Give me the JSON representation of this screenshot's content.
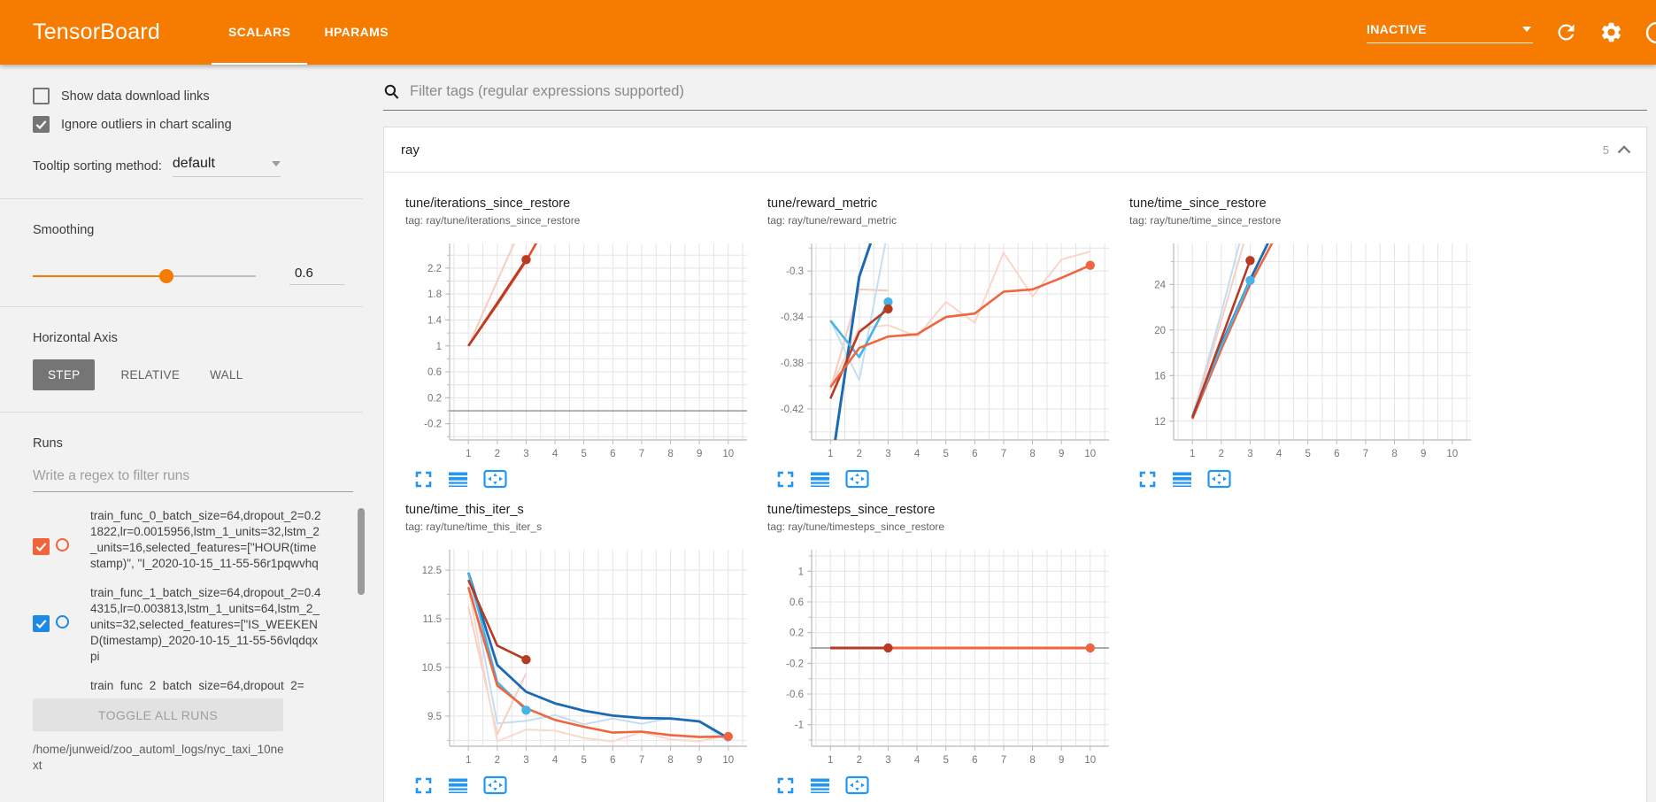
{
  "header": {
    "title": "TensorBoard",
    "tabs": [
      {
        "label": "SCALARS",
        "active": true
      },
      {
        "label": "HPARAMS",
        "active": false
      }
    ],
    "status": "INACTIVE",
    "accent_color": "#f57c00",
    "icons": [
      "dropdown-caret-icon",
      "refresh-icon",
      "gear-icon",
      "help-icon"
    ]
  },
  "sidebar": {
    "checkboxes": [
      {
        "label": "Show data download links",
        "checked": false
      },
      {
        "label": "Ignore outliers in chart scaling",
        "checked": true
      }
    ],
    "tooltip": {
      "label": "Tooltip sorting method:",
      "value": "default"
    },
    "smoothing": {
      "label": "Smoothing",
      "value": "0.6",
      "percent": 60
    },
    "axis": {
      "label": "Horizontal Axis",
      "options": [
        "STEP",
        "RELATIVE",
        "WALL"
      ],
      "selected": "STEP"
    },
    "runs": {
      "label": "Runs",
      "placeholder": "Write a regex to filter runs",
      "items": [
        {
          "text": "train_func_0_batch_size=64,dropout_2=0.21822,lr=0.0015956,lstm_1_units=32,lstm_2_units=16,selected_features=[\"HOUR(timestamp)\", \"I_2020-10-15_11-55-56r1pqwvhq",
          "checked": true,
          "color": "#f4623a"
        },
        {
          "text": "train_func_1_batch_size=64,dropout_2=0.44315,lr=0.003813,lstm_1_units=64,lstm_2_units=32,selected_features=[\"IS_WEEKEND(timestamp)_2020-10-15_11-55-56vlqdqxpi",
          "checked": true,
          "color": "#1e88e5"
        },
        {
          "text": "train_func_2_batch_size=64,dropout_2=",
          "checked": true,
          "color": "#e45140"
        }
      ],
      "toggle_all": "TOGGLE ALL RUNS",
      "log_path": "/home/junweid/zoo_automl_logs/nyc_taxi_10next"
    }
  },
  "main": {
    "filter_placeholder": "Filter tags (regular expressions supported)",
    "section": {
      "name": "ray",
      "count": "5"
    }
  },
  "chart_data": [
    {
      "type": "line",
      "title": "tune/iterations_since_restore",
      "tag": "tag: ray/tune/iterations_since_restore",
      "xlim": [
        0.35,
        10.65
      ],
      "ylim": [
        -0.45,
        2.58
      ],
      "xticks": [
        1,
        2,
        3,
        4,
        5,
        6,
        7,
        8,
        9,
        10
      ],
      "yticks": [
        -0.2,
        0.2,
        0.6,
        1,
        1.4,
        1.8,
        2.2
      ],
      "zero_line": true,
      "grid": true,
      "legend": "none",
      "series": [
        {
          "name": "train_func_0 (raw)",
          "color": "#f7cdbe",
          "width": 2,
          "points": [
            [
              1,
              1
            ],
            [
              2,
              2
            ],
            [
              2.9,
              2.9
            ]
          ]
        },
        {
          "name": "train_func orange (smoothed)",
          "color": "#e2502f",
          "width": 2.6,
          "points": [
            [
              1,
              1
            ],
            [
              2,
              1.64
            ],
            [
              3,
              2.31
            ],
            [
              3.6,
              2.78
            ]
          ]
        },
        {
          "name": "train_func_0 (smoothed)",
          "color": "#bd3a20",
          "width": 2.6,
          "points": [
            [
              1,
              1
            ],
            [
              2,
              1.66
            ],
            [
              3,
              2.33
            ]
          ],
          "dot": true
        }
      ]
    },
    {
      "type": "line",
      "title": "tune/reward_metric",
      "tag": "tag: ray/tune/reward_metric",
      "xlim": [
        0.35,
        10.65
      ],
      "ylim": [
        -0.447,
        -0.276
      ],
      "xticks": [
        1,
        2,
        3,
        4,
        5,
        6,
        7,
        8,
        9,
        10
      ],
      "yticks": [
        -0.42,
        -0.38,
        -0.34,
        -0.3
      ],
      "zero_line": false,
      "grid": true,
      "legend": "none",
      "series": [
        {
          "name": "train_func_0 (raw)",
          "color": "#f6cabc",
          "width": 2,
          "points": [
            [
              1,
              -0.403
            ],
            [
              2,
              -0.316
            ],
            [
              3,
              -0.317
            ]
          ]
        },
        {
          "name": "train_func orange (raw)",
          "color": "#f9d6ca",
          "width": 2,
          "points": [
            [
              1,
              -0.401
            ],
            [
              2,
              -0.35
            ],
            [
              3,
              -0.347
            ],
            [
              4,
              -0.357
            ],
            [
              5,
              -0.327
            ],
            [
              6,
              -0.345
            ],
            [
              7,
              -0.284
            ],
            [
              8,
              -0.322
            ],
            [
              9,
              -0.29
            ],
            [
              10,
              -0.283
            ]
          ]
        },
        {
          "name": "train_func cyan (raw)",
          "color": "#c3e0f2",
          "width": 2,
          "points": [
            [
              1,
              -0.343
            ],
            [
              2,
              -0.395
            ],
            [
              2.95,
              -0.27
            ]
          ]
        },
        {
          "name": "train_func_1 (smoothed)",
          "color": "#1c6ab3",
          "width": 3,
          "points": [
            [
              1.15,
              -0.45
            ],
            [
              2,
              -0.305
            ],
            [
              2.5,
              -0.268
            ]
          ]
        },
        {
          "name": "train_func cyan (smoothed)",
          "color": "#47b4e8",
          "width": 2.6,
          "points": [
            [
              1,
              -0.343
            ],
            [
              2,
              -0.375
            ],
            [
              3,
              -0.327
            ]
          ],
          "dot": true
        },
        {
          "name": "train_func_0 (smoothed)",
          "color": "#b73a22",
          "width": 2.6,
          "points": [
            [
              1,
              -0.411
            ],
            [
              2,
              -0.353
            ],
            [
              3,
              -0.333
            ]
          ],
          "dot": true
        },
        {
          "name": "train_func orange (smoothed)",
          "color": "#ee6540",
          "width": 2.6,
          "points": [
            [
              1,
              -0.401
            ],
            [
              2,
              -0.367
            ],
            [
              3,
              -0.357
            ],
            [
              4,
              -0.355
            ],
            [
              5,
              -0.34
            ],
            [
              6,
              -0.337
            ],
            [
              7,
              -0.318
            ],
            [
              8,
              -0.316
            ],
            [
              9,
              -0.306
            ],
            [
              10,
              -0.295
            ]
          ],
          "dot": true
        }
      ]
    },
    {
      "type": "line",
      "title": "tune/time_since_restore",
      "tag": "tag: ray/tune/time_since_restore",
      "xlim": [
        0.35,
        10.65
      ],
      "ylim": [
        10.35,
        27.6
      ],
      "xticks": [
        1,
        2,
        3,
        4,
        5,
        6,
        7,
        8,
        9,
        10
      ],
      "yticks": [
        12,
        16,
        20,
        24
      ],
      "zero_line": false,
      "grid": true,
      "legend": "none",
      "series": [
        {
          "name": "train_func cyan (raw)",
          "color": "#c3ddf0",
          "width": 2,
          "points": [
            [
              1,
              12.4
            ],
            [
              2,
              21.5
            ],
            [
              2.65,
              27.8
            ]
          ]
        },
        {
          "name": "train_func orange (raw)",
          "color": "#f7cfc2",
          "width": 2,
          "points": [
            [
              1,
              12.2
            ],
            [
              2,
              20.8
            ],
            [
              2.8,
              27.8
            ]
          ]
        },
        {
          "name": "train_func orange (smoothed)",
          "color": "#ee6540",
          "width": 2.6,
          "points": [
            [
              1,
              12.2
            ],
            [
              2,
              18.3
            ],
            [
              3,
              24.0
            ],
            [
              3.8,
              27.8
            ]
          ]
        },
        {
          "name": "train_func_1 (smoothed)",
          "color": "#1c6ab3",
          "width": 2.8,
          "points": [
            [
              1,
              12.4
            ],
            [
              2,
              18.7
            ],
            [
              3,
              24.4
            ],
            [
              3.65,
              27.8
            ]
          ]
        },
        {
          "name": "train_func cyan (smoothed)",
          "color": "#47b4e8",
          "width": 2.4,
          "points": [
            [
              1,
              12.4
            ],
            [
              2,
              18.6
            ],
            [
              3,
              24.35
            ]
          ],
          "dot": true
        },
        {
          "name": "train_func_0 (smoothed)",
          "color": "#b73a22",
          "width": 2.6,
          "points": [
            [
              1,
              12.3
            ],
            [
              2,
              19.2
            ],
            [
              3,
              26.1
            ]
          ],
          "dot": true
        }
      ]
    },
    {
      "type": "line",
      "title": "tune/time_this_iter_s",
      "tag": "tag: ray/tune/time_this_iter_s",
      "xlim": [
        0.35,
        10.65
      ],
      "ylim": [
        8.88,
        12.92
      ],
      "xticks": [
        1,
        2,
        3,
        4,
        5,
        6,
        7,
        8,
        9,
        10
      ],
      "yticks": [
        9.5,
        10.5,
        11.5,
        12.5
      ],
      "zero_line": false,
      "grid": true,
      "legend": "none",
      "series": [
        {
          "name": "train_func cyan (raw)",
          "color": "#c3ddf0",
          "width": 2,
          "points": [
            [
              1,
              12.45
            ],
            [
              2,
              9.35
            ],
            [
              3,
              9.4
            ],
            [
              4,
              9.52
            ],
            [
              5,
              9.33
            ],
            [
              6,
              9.45
            ],
            [
              7,
              9.34
            ],
            [
              8,
              9.46
            ],
            [
              9,
              9.4
            ],
            [
              10,
              8.97
            ]
          ]
        },
        {
          "name": "train_func_0 (raw)",
          "color": "#f7cfc2",
          "width": 2,
          "points": [
            [
              1,
              11.75
            ],
            [
              2,
              9.12
            ],
            [
              3,
              10.38
            ]
          ]
        },
        {
          "name": "train_func orange (raw)",
          "color": "#f9d8cd",
          "width": 2,
          "points": [
            [
              1,
              12.15
            ],
            [
              2,
              8.98
            ],
            [
              3,
              9.22
            ],
            [
              4,
              9.2
            ],
            [
              5,
              9.05
            ],
            [
              6,
              8.98
            ],
            [
              7,
              9.17
            ],
            [
              8,
              9.02
            ],
            [
              9,
              8.98
            ],
            [
              10,
              9.12
            ]
          ]
        },
        {
          "name": "train_func_1 (smoothed)",
          "color": "#1c6ab3",
          "width": 2.8,
          "points": [
            [
              1,
              12.45
            ],
            [
              2,
              10.55
            ],
            [
              3,
              10.0
            ],
            [
              4,
              9.76
            ],
            [
              5,
              9.61
            ],
            [
              6,
              9.51
            ],
            [
              7,
              9.46
            ],
            [
              8,
              9.45
            ],
            [
              9,
              9.39
            ],
            [
              10,
              9.05
            ]
          ]
        },
        {
          "name": "train_func cyan (smoothed)",
          "color": "#47b4e8",
          "width": 2.4,
          "points": [
            [
              1,
              12.45
            ],
            [
              2,
              10.2
            ],
            [
              3,
              9.62
            ]
          ],
          "dot": true
        },
        {
          "name": "train_func orange (smoothed)",
          "color": "#ee6540",
          "width": 2.6,
          "points": [
            [
              1,
              12.15
            ],
            [
              2,
              10.13
            ],
            [
              3,
              9.66
            ],
            [
              4,
              9.42
            ],
            [
              5,
              9.28
            ],
            [
              6,
              9.16
            ],
            [
              7,
              9.18
            ],
            [
              8,
              9.11
            ],
            [
              9,
              9.07
            ],
            [
              10,
              9.08
            ]
          ],
          "dot": true
        },
        {
          "name": "train_func_0 (smoothed)",
          "color": "#b73a22",
          "width": 2.6,
          "points": [
            [
              1,
              12.3
            ],
            [
              2,
              10.95
            ],
            [
              3,
              10.66
            ]
          ],
          "dot": true
        }
      ]
    },
    {
      "type": "line",
      "title": "tune/timesteps_since_restore",
      "tag": "tag: ray/tune/timesteps_since_restore",
      "xlim": [
        0.35,
        10.65
      ],
      "ylim": [
        -1.28,
        1.28
      ],
      "xticks": [
        1,
        2,
        3,
        4,
        5,
        6,
        7,
        8,
        9,
        10
      ],
      "yticks": [
        1,
        0.6,
        0.2,
        -0.2,
        -0.6,
        -1
      ],
      "zero_line": true,
      "grid": true,
      "legend": "none",
      "series": [
        {
          "name": "train_func orange (smoothed)",
          "color": "#ee6540",
          "width": 3,
          "points": [
            [
              1,
              0
            ],
            [
              10,
              0
            ]
          ],
          "dot": true
        },
        {
          "name": "train_func_0 (smoothed)",
          "color": "#b73a22",
          "width": 3,
          "points": [
            [
              1,
              0
            ],
            [
              3,
              0
            ]
          ],
          "dot": true
        }
      ]
    }
  ]
}
